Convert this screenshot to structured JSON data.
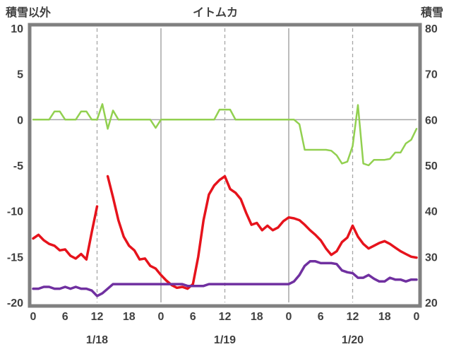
{
  "header": {
    "left_axis_title": "積雪以外",
    "title": "イトムカ",
    "right_axis_title": "積雪"
  },
  "chart_data": {
    "type": "line",
    "title": "イトムカ",
    "colors": {
      "grid": "#a6a6a6",
      "frame": "#808080",
      "text": "#404040"
    },
    "left_axis": {
      "label": "積雪以外",
      "min": -20,
      "max": 10,
      "ticks": [
        "10",
        "5",
        "0",
        "-5",
        "-10",
        "-15",
        "-20"
      ],
      "tick_values": [
        10,
        5,
        0,
        -5,
        -10,
        -15,
        -20
      ]
    },
    "right_axis": {
      "label": "積雪",
      "min": 20,
      "max": 80,
      "ticks": [
        "80",
        "70",
        "60",
        "50",
        "40",
        "30",
        "20"
      ],
      "tick_values": [
        80,
        70,
        60,
        50,
        40,
        30,
        20
      ]
    },
    "x_axis": {
      "hours_span": 72,
      "tick_interval": 6,
      "tick_labels": [
        "0",
        "6",
        "12",
        "18",
        "0",
        "6",
        "12",
        "18",
        "0",
        "6",
        "12",
        "18",
        "0"
      ],
      "date_labels": [
        {
          "label": "1/18",
          "hour": 12
        },
        {
          "label": "1/19",
          "hour": 36
        },
        {
          "label": "1/20",
          "hour": 60
        }
      ]
    },
    "gridlines": {
      "vertical_solid_hours": [
        24,
        48
      ],
      "vertical_dashed_hours": [
        12,
        36,
        60
      ],
      "horizontal_solid_values": [
        0
      ]
    },
    "series": [
      {
        "name": "temperature-red",
        "color": "#e6131c",
        "axis": "left",
        "stroke_width": 3.5,
        "values": [
          -13.0,
          -12.6,
          -13.2,
          -13.6,
          -13.8,
          -14.3,
          -14.2,
          -14.9,
          -15.2,
          -14.7,
          -15.3,
          -12.3,
          -9.5,
          null,
          -6.2,
          -8.5,
          -11.0,
          -12.8,
          -13.8,
          -14.3,
          -15.3,
          -15.2,
          -16.0,
          -16.3,
          -17.0,
          -17.6,
          -18.1,
          -18.4,
          -18.3,
          -18.5,
          -18.0,
          -15.0,
          -11.0,
          -8.2,
          -7.2,
          -6.6,
          -6.2,
          -7.6,
          -8.0,
          -8.7,
          -10.2,
          -11.5,
          -11.3,
          -12.1,
          -11.6,
          -12.1,
          -11.8,
          -11.1,
          -10.7,
          -10.8,
          -11.0,
          -11.5,
          -12.1,
          -12.6,
          -13.2,
          -14.1,
          -14.8,
          -14.4,
          -13.4,
          -12.9,
          -11.6,
          -12.8,
          -13.6,
          -14.1,
          -13.8,
          -13.5,
          -13.3,
          -13.6,
          -14.0,
          -14.4,
          -14.7,
          -15.0,
          -15.1
        ]
      },
      {
        "name": "precipitation-green",
        "color": "#92d050",
        "axis": "left",
        "stroke_width": 2.5,
        "values": [
          0,
          0,
          0,
          0,
          0.9,
          0.9,
          0,
          0,
          0,
          0.9,
          0.9,
          0,
          0,
          1.7,
          -1.0,
          1.0,
          0,
          0,
          0,
          0,
          0,
          0,
          0,
          -0.9,
          0,
          0,
          0,
          0,
          0,
          0,
          0,
          0,
          0,
          0,
          0,
          1.1,
          1.1,
          1.1,
          0,
          0,
          0,
          0,
          0,
          0,
          0,
          0,
          0,
          0,
          0,
          0,
          -0.5,
          -3.3,
          -3.3,
          -3.3,
          -3.3,
          -3.3,
          -3.4,
          -3.9,
          -4.8,
          -4.6,
          -2.9,
          1.6,
          -4.8,
          -5.0,
          -4.4,
          -4.4,
          -4.4,
          -4.3,
          -3.6,
          -3.6,
          -2.6,
          -2.2,
          -1.0
        ]
      },
      {
        "name": "snow-depth-purple",
        "color": "#7030a0",
        "axis": "right",
        "stroke_width": 3.5,
        "values": [
          23,
          23,
          23.4,
          23.4,
          23,
          23,
          23.4,
          23,
          23.4,
          23,
          23,
          22.6,
          21.4,
          22,
          23,
          24,
          24,
          24,
          24,
          24,
          24,
          24,
          24,
          24,
          24,
          24,
          24,
          24,
          24,
          23.6,
          23.6,
          23.6,
          23.6,
          24,
          24,
          24,
          24,
          24,
          24,
          24,
          24,
          24,
          24,
          24,
          24,
          24,
          24,
          24,
          24,
          24.6,
          26,
          28,
          29,
          29,
          28.6,
          28.6,
          28.6,
          28.4,
          27,
          26.6,
          26.4,
          25.4,
          25.4,
          26,
          25.2,
          24.6,
          24.6,
          25.4,
          25,
          25,
          24.6,
          25,
          25
        ]
      }
    ]
  }
}
